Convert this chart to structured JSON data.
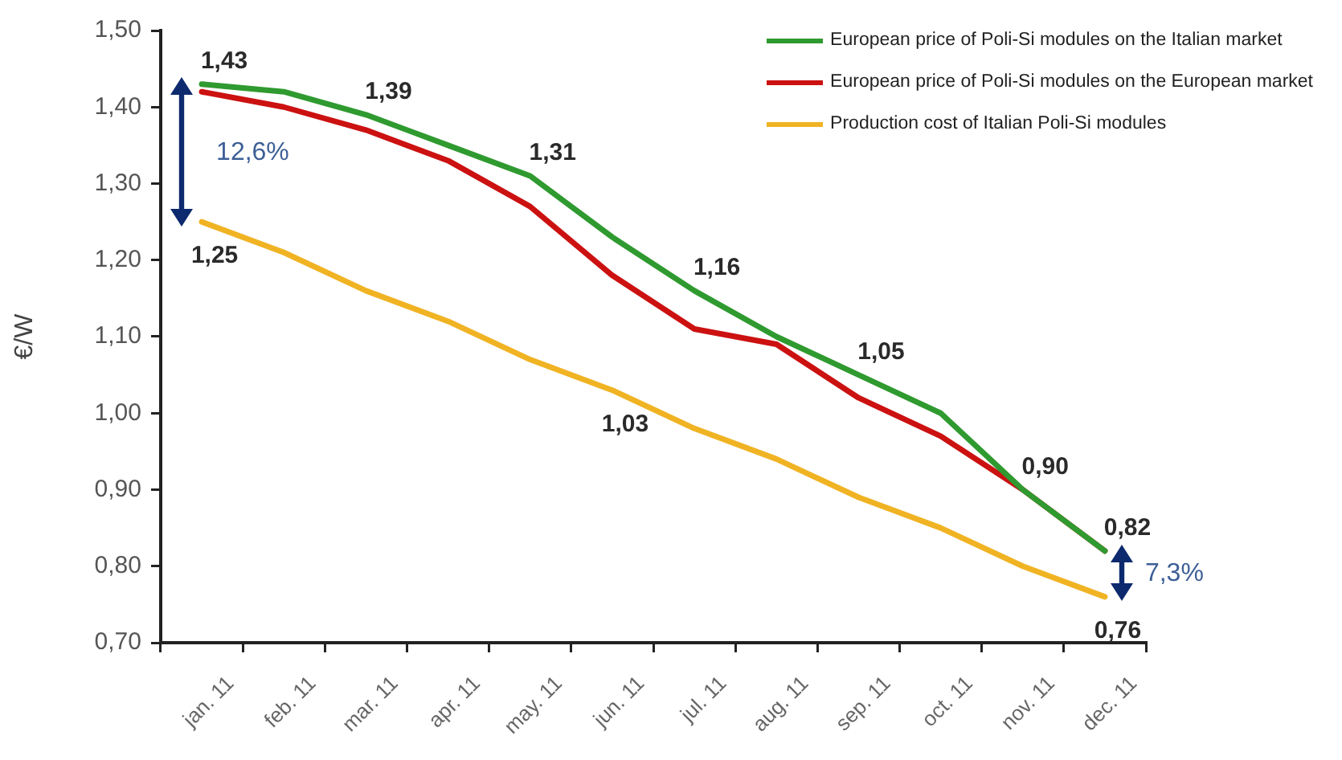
{
  "chart_data": {
    "type": "line",
    "ylabel": "€/W",
    "categories": [
      "jan. 11",
      "feb. 11",
      "mar. 11",
      "apr. 11",
      "may. 11",
      "jun. 11",
      "jul. 11",
      "aug. 11",
      "sep. 11",
      "oct. 11",
      "nov. 11",
      "dec. 11"
    ],
    "series": [
      {
        "name": "European price of Poli-Si modules on the Italian market",
        "color": "#2f9a2f",
        "values": [
          1.43,
          1.42,
          1.39,
          1.35,
          1.31,
          1.23,
          1.16,
          1.1,
          1.05,
          1.0,
          0.9,
          0.82
        ],
        "value_labels": [
          "1,43",
          null,
          "1,39",
          null,
          "1,31",
          null,
          "1,16",
          null,
          "1,05",
          null,
          "0,90",
          "0,82"
        ]
      },
      {
        "name": "European price of Poli-Si modules on the European market",
        "color": "#cc1111",
        "values": [
          1.42,
          1.4,
          1.37,
          1.33,
          1.27,
          1.18,
          1.11,
          1.09,
          1.02,
          0.97,
          0.9,
          0.82
        ]
      },
      {
        "name": "Production cost of Italian Poli-Si modules",
        "color": "#f0b323",
        "values": [
          1.25,
          1.21,
          1.16,
          1.12,
          1.07,
          1.03,
          0.98,
          0.94,
          0.89,
          0.85,
          0.8,
          0.76
        ],
        "value_labels": [
          "1,25",
          null,
          null,
          null,
          null,
          "1,03",
          null,
          null,
          null,
          null,
          null,
          "0,76"
        ]
      }
    ],
    "ylim": [
      0.7,
      1.5
    ],
    "yticks": [
      {
        "value": 0.7,
        "label": "0,70"
      },
      {
        "value": 0.8,
        "label": "0,80"
      },
      {
        "value": 0.9,
        "label": "0,90"
      },
      {
        "value": 1.0,
        "label": "1,00"
      },
      {
        "value": 1.1,
        "label": "1,10"
      },
      {
        "value": 1.2,
        "label": "1,20"
      },
      {
        "value": 1.3,
        "label": "1,30"
      },
      {
        "value": 1.4,
        "label": "1,40"
      },
      {
        "value": 1.5,
        "label": "1,50"
      }
    ],
    "legend": "top right",
    "annotations": [
      "12,6%",
      "7,3%"
    ]
  }
}
